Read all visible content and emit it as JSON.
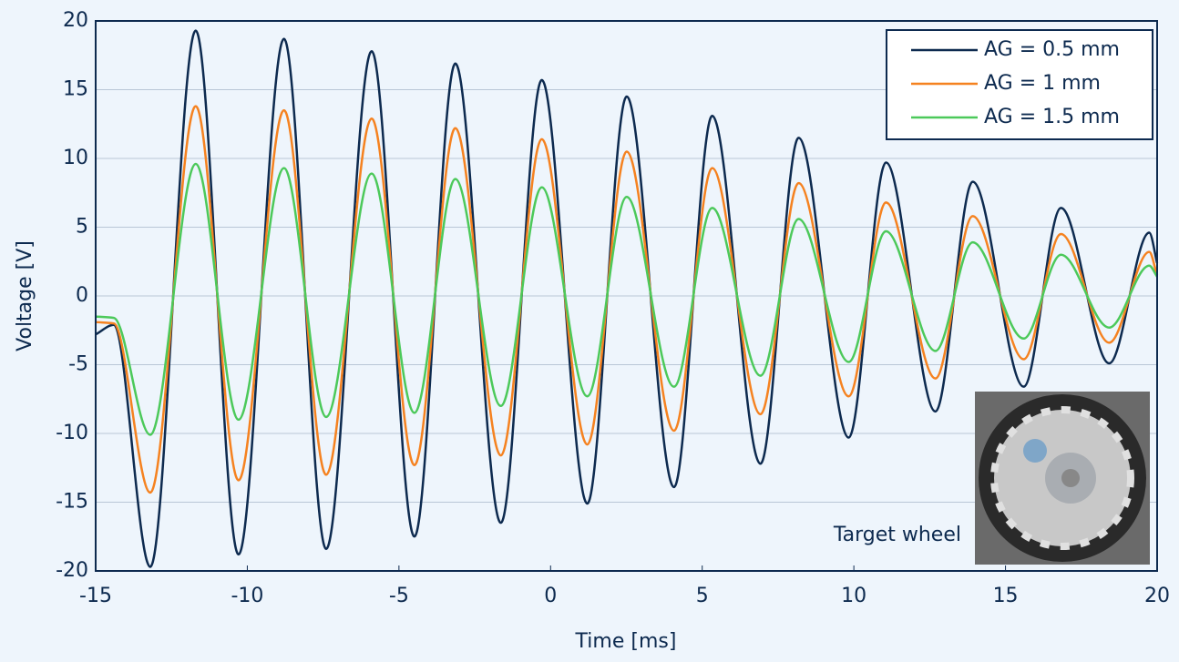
{
  "chart_data": {
    "type": "line",
    "xlabel": "Time [ms]",
    "ylabel": "Voltage [V]",
    "x": [
      -15,
      -14.4,
      -13.2,
      -11.7,
      -10.29,
      -8.79,
      -7.4,
      -5.9,
      -4.49,
      -3.14,
      -1.64,
      -0.29,
      1.21,
      2.51,
      4.07,
      5.33,
      6.92,
      8.18,
      9.83,
      11.06,
      12.69,
      13.92,
      15.6,
      16.83,
      18.42,
      19.74,
      20
    ],
    "series": [
      {
        "name": "AG = 0.5 mm",
        "color": "#0d2a4f",
        "values": [
          -2.8,
          -2.1,
          -19.7,
          19.3,
          -18.8,
          18.7,
          -18.4,
          17.8,
          -17.5,
          16.9,
          -16.5,
          15.7,
          -15.1,
          14.5,
          -13.9,
          13.1,
          -12.2,
          11.5,
          -10.3,
          9.7,
          -8.4,
          8.3,
          -6.6,
          6.4,
          -4.9,
          4.6,
          2.4
        ]
      },
      {
        "name": "AG = 1 mm",
        "color": "#f58220",
        "values": [
          -1.9,
          -2.0,
          -14.3,
          13.8,
          -13.4,
          13.5,
          -13.0,
          12.9,
          -12.3,
          12.2,
          -11.6,
          11.4,
          -10.8,
          10.5,
          -9.8,
          9.3,
          -8.6,
          8.2,
          -7.3,
          6.8,
          -6.0,
          5.8,
          -4.6,
          4.5,
          -3.4,
          3.2,
          1.5
        ]
      },
      {
        "name": "AG = 1.5 mm",
        "color": "#4cc95a",
        "values": [
          -1.5,
          -1.6,
          -10.1,
          9.6,
          -9.0,
          9.3,
          -8.8,
          8.9,
          -8.5,
          8.5,
          -8.0,
          7.9,
          -7.3,
          7.2,
          -6.6,
          6.4,
          -5.8,
          5.6,
          -4.8,
          4.7,
          -4.0,
          3.9,
          -3.1,
          3.0,
          -2.3,
          2.2,
          1.4
        ]
      }
    ],
    "xlim": [
      -15,
      20
    ],
    "xticks": [
      -15,
      -10,
      -5,
      0,
      5,
      10,
      15,
      20
    ],
    "ylim": [
      -20,
      20
    ],
    "yticks": [
      -20,
      -15,
      -10,
      -5,
      0,
      5,
      10,
      15,
      20
    ],
    "grid": true,
    "legend": "upper right",
    "inset_label": "Target wheel"
  }
}
